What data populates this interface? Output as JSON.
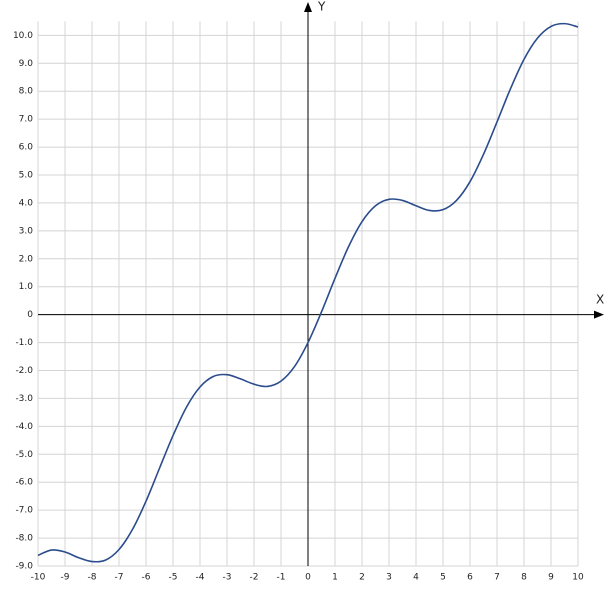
{
  "chart_data": {
    "type": "line",
    "x_label": "X",
    "y_label": "Y",
    "xlim": [
      -10,
      10
    ],
    "ylim": [
      -9,
      10.5
    ],
    "xticks": [
      -10,
      -9,
      -8,
      -7,
      -6,
      -5,
      -4,
      -3,
      -2,
      -1,
      0,
      1,
      2,
      3,
      4,
      5,
      6,
      7,
      8,
      9,
      10
    ],
    "yticks": [
      {
        "value": 10,
        "label": "10.0"
      },
      {
        "value": 9,
        "label": "9.0"
      },
      {
        "value": 8,
        "label": "8.0"
      },
      {
        "value": 7,
        "label": "7.0"
      },
      {
        "value": 6,
        "label": "6.0"
      },
      {
        "value": 5,
        "label": "5.0"
      },
      {
        "value": 4,
        "label": "4.0"
      },
      {
        "value": 3,
        "label": "3.0"
      },
      {
        "value": 2,
        "label": "2.0"
      },
      {
        "value": 1,
        "label": "1.0"
      },
      0,
      {
        "value": -1,
        "label": "-1.0"
      },
      {
        "value": -2,
        "label": "-2.0"
      },
      {
        "value": -3,
        "label": "-3.0"
      },
      {
        "value": -4,
        "label": "-4.0"
      },
      {
        "value": -5,
        "label": "-5.0"
      },
      {
        "value": -6,
        "label": "-6.0"
      },
      {
        "value": -7,
        "label": "-7.0"
      },
      {
        "value": -8,
        "label": "-8.0"
      },
      {
        "value": -9,
        "label": "-9.0"
      }
    ],
    "grid": true,
    "x": [
      -10,
      -9.5,
      -9,
      -8.5,
      -8,
      -7.5,
      -7,
      -6.5,
      -6,
      -5.5,
      -5,
      -4.5,
      -4,
      -3.5,
      -3,
      -2.5,
      -2,
      -1.5,
      -1,
      -0.5,
      0,
      0.5,
      1,
      1.5,
      2,
      2.5,
      3,
      3.5,
      4,
      4.5,
      5,
      5.5,
      6,
      6.5,
      7,
      7.5,
      8,
      8.5,
      9,
      9.5,
      10
    ],
    "series": [
      {
        "color": "#2b4c8c",
        "values": [
          -8.62,
          -8.43,
          -8.5,
          -8.7,
          -8.84,
          -8.79,
          -8.41,
          -7.69,
          -6.68,
          -5.5,
          -4.33,
          -3.31,
          -2.59,
          -2.21,
          -2.15,
          -2.3,
          -2.49,
          -2.57,
          -2.38,
          -1.86,
          -1,
          0.1,
          1.3,
          2.43,
          3.33,
          3.9,
          4.13,
          4.09,
          3.9,
          3.73,
          3.76,
          4.09,
          4.76,
          5.74,
          6.9,
          8.09,
          9.14,
          9.9,
          10.32,
          10.42,
          10.3
        ]
      }
    ]
  }
}
